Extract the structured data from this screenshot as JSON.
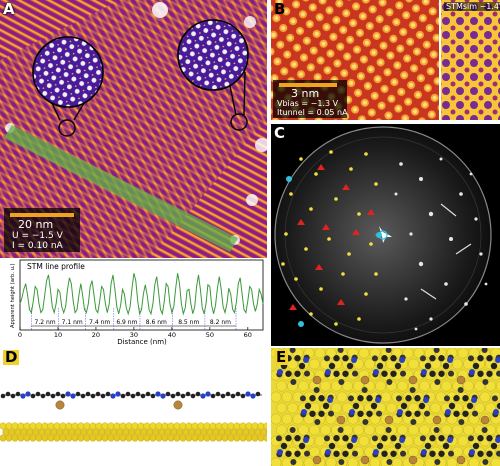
{
  "panels": {
    "A": {
      "label": "A",
      "scale_text": "20 nm",
      "bias_text": "U = −1.5 V",
      "current_text": "I = 0.10 nA"
    },
    "B": {
      "label": "B",
      "scale_text": "3 nm",
      "bias_text": "Vbias = −1.3 V",
      "current_text": "Itunnel = 0.05 nA",
      "sim_label": "STMsim −1.4V"
    },
    "C": {
      "label": "C"
    },
    "D": {
      "label": "D"
    },
    "E": {
      "label": "E"
    }
  },
  "chart_data": {
    "type": "line",
    "title": "STM line profile",
    "xlabel": "Distance (nm)",
    "ylabel": "Apparent height (arb. u.)",
    "xlim": [
      0,
      64
    ],
    "x_ticks": [
      0,
      10,
      20,
      30,
      40,
      50,
      60
    ],
    "annotations": [
      "7.2 nm",
      "7.1 nm",
      "7.4 nm",
      "6.9 nm",
      "8.6 nm",
      "8.5 nm",
      "8.2 nm"
    ],
    "period_markers_nm": [
      3.0,
      10.2,
      17.3,
      24.7,
      31.6,
      40.2,
      48.7,
      56.9
    ],
    "series": [
      {
        "color": "#3a9a3a",
        "x": [
          0,
          0.5,
          1,
          1.5,
          2,
          2.5,
          3,
          3.5,
          4,
          4.5,
          5,
          5.5,
          6,
          6.5,
          7,
          7.5,
          8,
          8.5,
          9,
          9.5,
          10,
          10.5,
          11,
          11.5,
          12,
          12.5,
          13,
          13.5,
          14,
          14.5,
          15,
          15.5,
          16,
          16.5,
          17,
          17.5,
          18,
          18.5,
          19,
          19.5,
          20,
          20.5,
          21,
          21.5,
          22,
          22.5,
          23,
          23.5,
          24,
          24.5,
          25,
          25.5,
          26,
          26.5,
          27,
          27.5,
          28,
          28.5,
          29,
          29.5,
          30,
          30.5,
          31,
          31.5,
          32,
          32.5,
          33,
          33.5,
          34,
          34.5,
          35,
          35.5,
          36,
          36.5,
          37,
          37.5,
          38,
          38.5,
          39,
          39.5,
          40,
          40.5,
          41,
          41.5,
          42,
          42.5,
          43,
          43.5,
          44,
          44.5,
          45,
          45.5,
          46,
          46.5,
          47,
          47.5,
          48,
          48.5,
          49,
          49.5,
          50,
          50.5,
          51,
          51.5,
          52,
          52.5,
          53,
          53.5,
          54,
          54.5,
          55,
          55.5,
          56,
          56.5,
          57,
          57.5,
          58,
          58.5,
          59,
          59.5,
          60,
          60.5,
          61,
          61.5,
          62,
          62.5,
          63,
          63.5,
          64
        ],
        "y": [
          0.45,
          0.55,
          0.7,
          0.8,
          0.6,
          0.35,
          0.3,
          0.5,
          0.75,
          0.7,
          0.45,
          0.3,
          0.35,
          0.6,
          0.85,
          0.95,
          0.7,
          0.4,
          0.3,
          0.45,
          0.7,
          0.65,
          0.4,
          0.3,
          0.4,
          0.7,
          0.9,
          0.8,
          0.5,
          0.3,
          0.35,
          0.6,
          0.8,
          0.6,
          0.35,
          0.3,
          0.45,
          0.75,
          0.85,
          0.6,
          0.35,
          0.3,
          0.5,
          0.75,
          0.7,
          0.45,
          0.3,
          0.45,
          0.8,
          0.95,
          0.7,
          0.4,
          0.28,
          0.42,
          0.7,
          0.62,
          0.38,
          0.28,
          0.4,
          0.72,
          0.98,
          0.85,
          0.5,
          0.28,
          0.35,
          0.62,
          0.78,
          0.6,
          0.35,
          0.28,
          0.45,
          0.78,
          0.92,
          0.65,
          0.35,
          0.28,
          0.5,
          0.8,
          0.75,
          0.45,
          0.3,
          0.4,
          0.72,
          0.98,
          0.8,
          0.45,
          0.28,
          0.38,
          0.68,
          0.7,
          0.45,
          0.28,
          0.4,
          0.75,
          0.95,
          0.7,
          0.38,
          0.28,
          0.45,
          0.78,
          0.75,
          0.42,
          0.28,
          0.42,
          0.72,
          0.92,
          0.7,
          0.4,
          0.3,
          0.45,
          0.72,
          0.62,
          0.36,
          0.3,
          0.48,
          0.8,
          0.9,
          0.62,
          0.35,
          0.3,
          0.5,
          0.75,
          0.7,
          0.45,
          0.32,
          0.45,
          0.7,
          0.62,
          0.45
        ]
      }
    ]
  }
}
